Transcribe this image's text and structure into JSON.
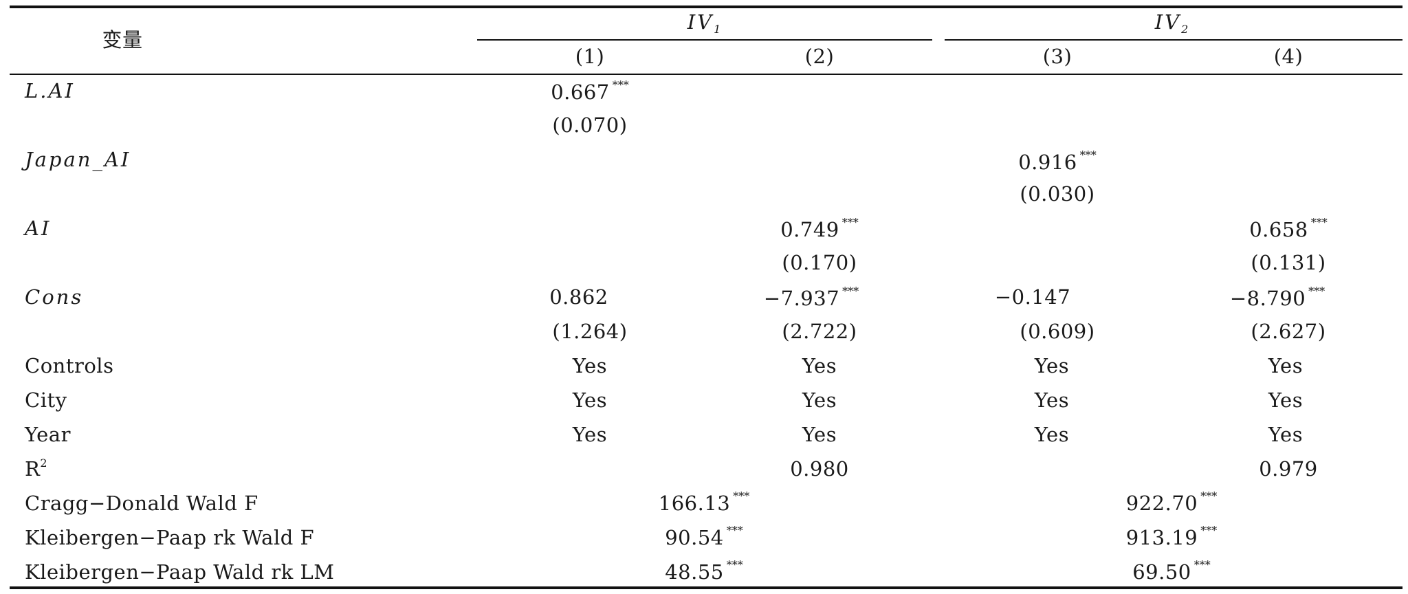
{
  "table": {
    "header": {
      "var_label": "变量",
      "groups": [
        {
          "label": "IV",
          "sub": "1"
        },
        {
          "label": "IV",
          "sub": "2"
        }
      ],
      "columns": [
        "(1)",
        "(2)",
        "(3)",
        "(4)"
      ]
    },
    "rows": {
      "lai": {
        "label": "L.AI",
        "c1": "0.667",
        "c1_stars": "***",
        "c1_se": "(0.070)"
      },
      "japan": {
        "label": "Japan_AI",
        "c3": "0.916",
        "c3_stars": "***",
        "c3_se": "(0.030)"
      },
      "ai": {
        "label": "AI",
        "c2": "0.749",
        "c2_stars": "***",
        "c2_se": "(0.170)",
        "c4": "0.658",
        "c4_stars": "***",
        "c4_se": "(0.131)"
      },
      "cons": {
        "label": "Cons",
        "c1": "0.862",
        "c1_se": "(1.264)",
        "c2": "−7.937",
        "c2_stars": "***",
        "c2_se": "(2.722)",
        "c3": "−0.147",
        "c3_se": "(0.609)",
        "c4": "−8.790",
        "c4_stars": "***",
        "c4_se": "(2.627)"
      },
      "controls": {
        "label": "Controls",
        "c1": "Yes",
        "c2": "Yes",
        "c3": "Yes",
        "c4": "Yes"
      },
      "city": {
        "label": "City",
        "c1": "Yes",
        "c2": "Yes",
        "c3": "Yes",
        "c4": "Yes"
      },
      "year": {
        "label": "Year",
        "c1": "Yes",
        "c2": "Yes",
        "c3": "Yes",
        "c4": "Yes"
      },
      "r2": {
        "label": "R",
        "label_sup": "2",
        "c2": "0.980",
        "c4": "0.979"
      },
      "cragg": {
        "label": "Cragg−Donald Wald F",
        "g1": "166.13",
        "g1_stars": "***",
        "g2": "922.70",
        "g2_stars": "***"
      },
      "kp_f": {
        "label": "Kleibergen−Paap rk Wald F",
        "g1": "90.54",
        "g1_stars": "***",
        "g2": "913.19",
        "g2_stars": "***"
      },
      "kp_lm": {
        "label": "Kleibergen−Paap Wald rk LM",
        "g1": "48.55",
        "g1_stars": "***",
        "g2": "69.50",
        "g2_stars": "***"
      }
    }
  }
}
